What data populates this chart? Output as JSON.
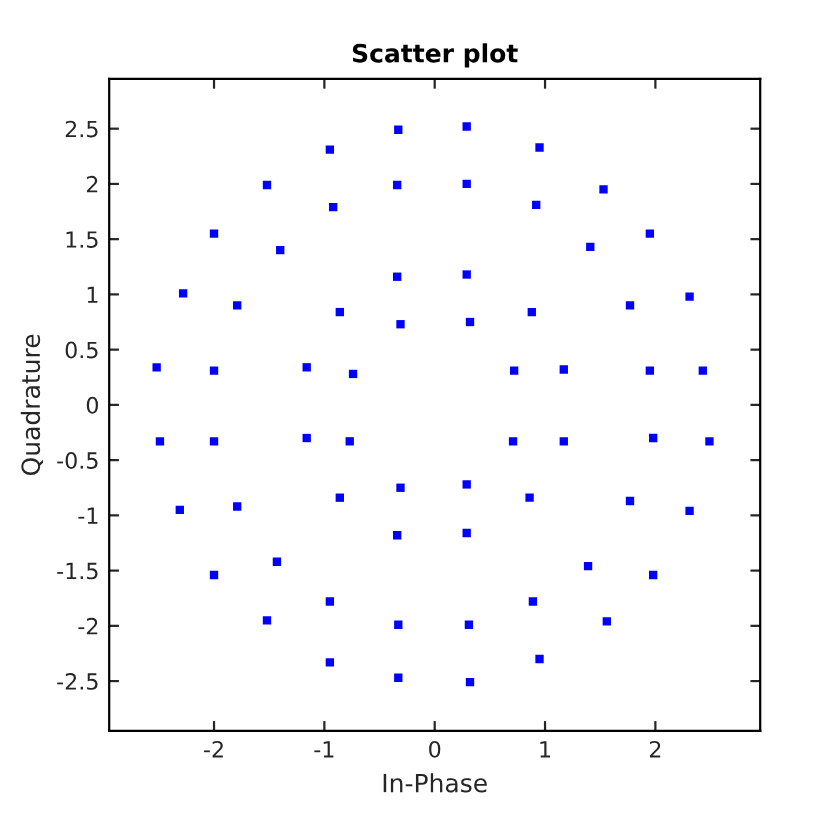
{
  "chart_data": {
    "type": "scatter",
    "title": "Scatter plot",
    "xlabel": "In-Phase",
    "ylabel": "Quadrature",
    "xlim": [
      -2.95,
      2.95
    ],
    "ylim": [
      -2.95,
      2.95
    ],
    "xticks": [
      -2,
      -1,
      0,
      1,
      2
    ],
    "yticks": [
      -2.5,
      -2,
      -1.5,
      -1,
      -0.5,
      0,
      0.5,
      1,
      1.5,
      2,
      2.5
    ],
    "grid": false,
    "legend": false,
    "marker": "square",
    "series": [
      {
        "color": "#0000ff",
        "x": [
          -0.33,
          -0.95,
          -0.34,
          -1.52,
          -0.92,
          -2.0,
          -1.4,
          -0.34,
          -2.28,
          -1.79,
          -0.86,
          -0.31,
          -2.52,
          -2.0,
          -1.16,
          -0.74,
          0.29,
          0.95,
          0.29,
          1.53,
          0.92,
          1.95,
          1.41,
          0.29,
          2.31,
          1.77,
          0.88,
          0.32,
          2.43,
          1.95,
          1.17,
          0.72,
          -2.49,
          -2.0,
          -1.16,
          -0.77,
          -0.31,
          -0.86,
          -2.31,
          -1.79,
          -0.34,
          -1.43,
          -2.0,
          -0.95,
          -1.52,
          -0.33,
          -0.95,
          -0.33,
          0.71,
          1.17,
          1.98,
          2.49,
          0.29,
          0.86,
          1.77,
          2.31,
          0.29,
          1.39,
          1.98,
          0.89,
          1.56,
          0.31,
          0.95,
          0.32
        ],
        "values": [
          2.49,
          2.31,
          1.99,
          1.99,
          1.79,
          1.55,
          1.4,
          1.16,
          1.01,
          0.9,
          0.84,
          0.73,
          0.34,
          0.31,
          0.34,
          0.28,
          2.52,
          2.33,
          2.0,
          1.95,
          1.81,
          1.55,
          1.43,
          1.18,
          0.98,
          0.9,
          0.84,
          0.75,
          0.31,
          0.31,
          0.32,
          0.31,
          -0.33,
          -0.33,
          -0.3,
          -0.33,
          -0.75,
          -0.84,
          -0.95,
          -0.92,
          -1.18,
          -1.42,
          -1.54,
          -1.78,
          -1.95,
          -1.99,
          -2.33,
          -2.47,
          -0.33,
          -0.33,
          -0.3,
          -0.33,
          -0.72,
          -0.84,
          -0.87,
          -0.96,
          -1.16,
          -1.46,
          -1.54,
          -1.78,
          -1.96,
          -1.99,
          -2.3,
          -2.51
        ]
      }
    ]
  }
}
